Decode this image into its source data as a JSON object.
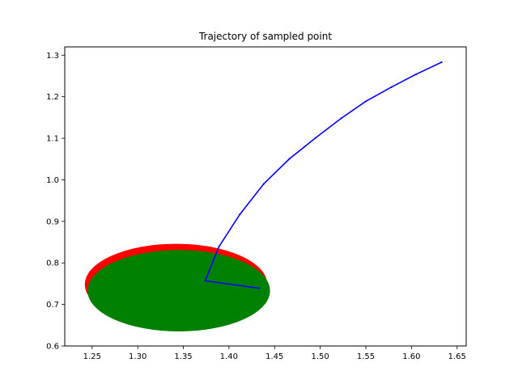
{
  "chart_data": {
    "type": "line",
    "title": "Trajectory of sampled point",
    "xlabel": "",
    "ylabel": "",
    "xlim": [
      1.22,
      1.66
    ],
    "ylim": [
      0.6,
      1.32
    ],
    "x_ticks": [
      1.25,
      1.3,
      1.35,
      1.4,
      1.45,
      1.5,
      1.55,
      1.6,
      1.65
    ],
    "y_ticks": [
      0.6,
      0.7,
      0.8,
      0.9,
      1.0,
      1.1,
      1.2,
      1.3
    ],
    "x_tick_labels": [
      "1.25",
      "1.30",
      "1.35",
      "1.40",
      "1.45",
      "1.50",
      "1.55",
      "1.60",
      "1.65"
    ],
    "y_tick_labels": [
      "0.6",
      "0.7",
      "0.8",
      "0.9",
      "1.0",
      "1.1",
      "1.2",
      "1.3"
    ],
    "grid": false,
    "ellipses": [
      {
        "color": "#ff0000",
        "cx": 1.342,
        "cy": 0.748,
        "rx": 0.1,
        "ry": 0.098
      },
      {
        "color": "#008000",
        "cx": 1.345,
        "cy": 0.733,
        "rx": 0.1,
        "ry": 0.098
      }
    ],
    "series": [
      {
        "color": "#0000ff",
        "x": [
          1.633,
          1.605,
          1.578,
          1.55,
          1.523,
          1.495,
          1.466,
          1.438,
          1.412,
          1.389,
          1.374,
          1.433
        ],
        "y": [
          1.283,
          1.254,
          1.223,
          1.189,
          1.148,
          1.101,
          1.05,
          0.99,
          0.917,
          0.839,
          0.757,
          0.739
        ]
      }
    ]
  }
}
